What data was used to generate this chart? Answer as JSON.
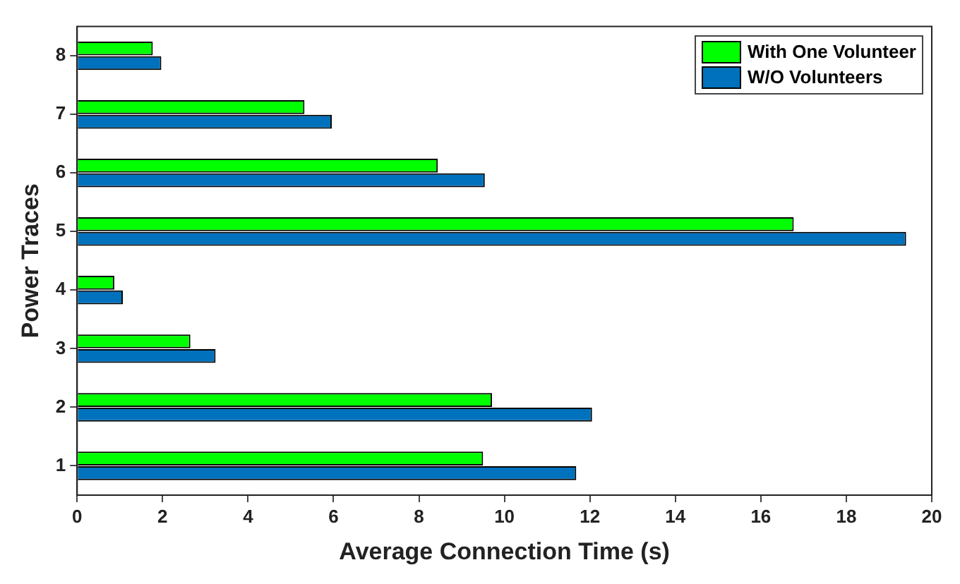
{
  "chart_data": {
    "type": "bar",
    "orientation": "horizontal",
    "xlabel": "Average Connection Time (s)",
    "ylabel": "Power Traces",
    "categories": [
      "8",
      "7",
      "6",
      "5",
      "4",
      "3",
      "2",
      "1"
    ],
    "series": [
      {
        "name": "With One Volunteer",
        "color": "#00ff00",
        "values": [
          1.77,
          5.32,
          8.44,
          16.77,
          0.87,
          2.65,
          9.71,
          9.5
        ]
      },
      {
        "name": "W/O Volunteers",
        "color": "#0072bd",
        "values": [
          1.97,
          5.96,
          9.54,
          19.4,
          1.07,
          3.24,
          12.05,
          11.68
        ]
      }
    ],
    "xlim": [
      0,
      20
    ],
    "xticks": [
      0,
      2,
      4,
      6,
      8,
      10,
      12,
      14,
      16,
      18,
      20
    ],
    "legend": "top right"
  }
}
